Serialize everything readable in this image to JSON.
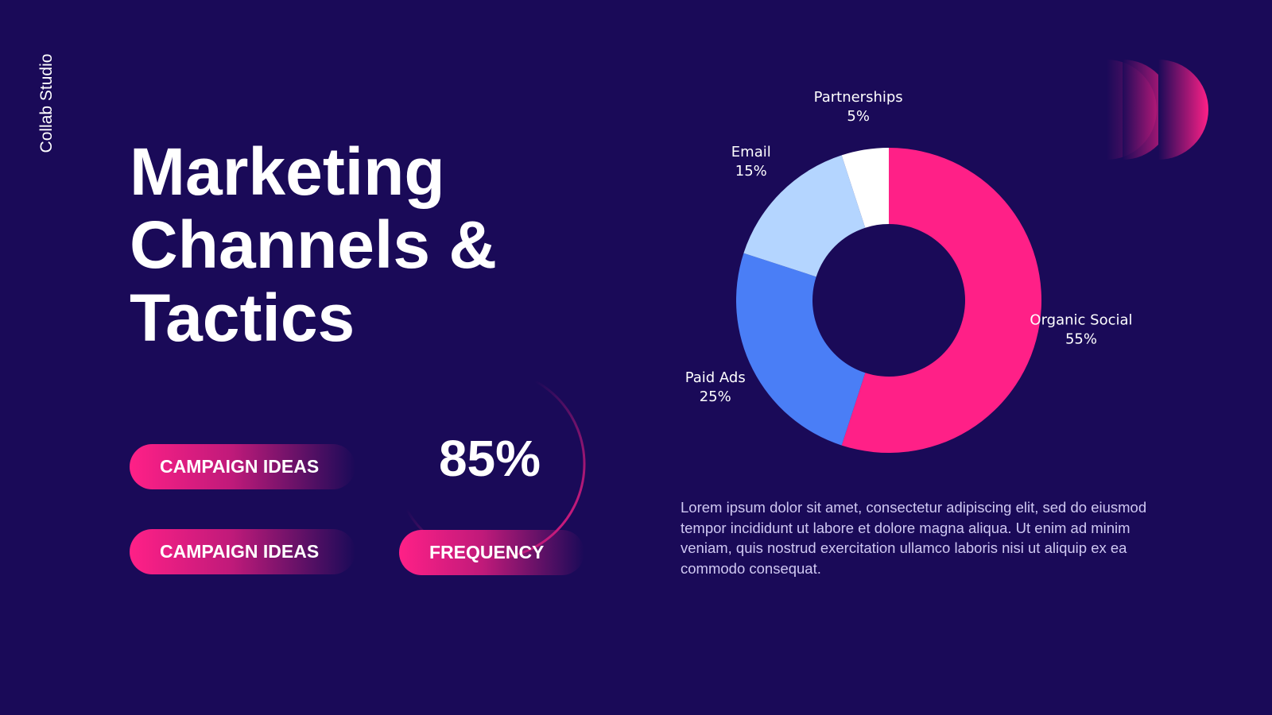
{
  "brand": "Collab Studio",
  "heading": "Marketing Channels & Tactics",
  "buttons": [
    "CAMPAIGN IDEAS",
    "CAMPAIGN IDEAS"
  ],
  "stat": {
    "value": "85%",
    "label": "FREQUENCY"
  },
  "paragraph": "Lorem ipsum dolor sit amet, consectetur adipiscing elit, sed do eiusmod tempor incididunt ut labore et dolore magna aliqua. Ut enim ad minim veniam, quis nostrud exercitation ullamco laboris nisi ut aliquip ex ea commodo consequat.",
  "chart_data": {
    "type": "donut",
    "categories": [
      "Organic Social",
      "Paid Ads",
      "Email",
      "Partnerships"
    ],
    "values": [
      55,
      25,
      15,
      5
    ],
    "value_labels": [
      "55%",
      "25%",
      "15%",
      "5%"
    ],
    "colors": [
      "#ff2087",
      "#4a7ef6",
      "#b4d5ff",
      "#ffffff"
    ]
  }
}
